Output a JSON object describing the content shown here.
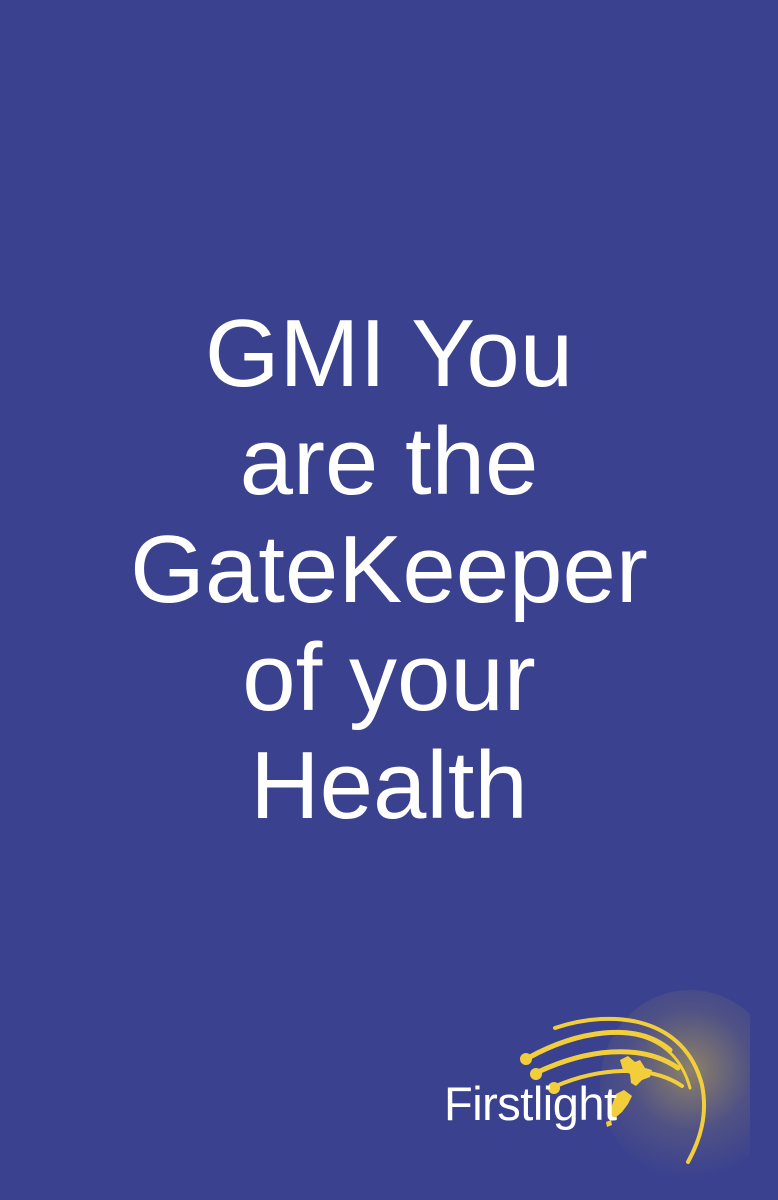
{
  "headline": {
    "lines": [
      "GMI You",
      "are the",
      "GateKeeper",
      "of your",
      "Health"
    ]
  },
  "logo": {
    "wordmark": "Firstlight",
    "icon": "light-rays-over-new-zealand-icon",
    "colors": {
      "gold": "#f2cf3a",
      "white": "#ffffff"
    }
  },
  "colors": {
    "background": "#3a418f",
    "text": "#ffffff"
  }
}
